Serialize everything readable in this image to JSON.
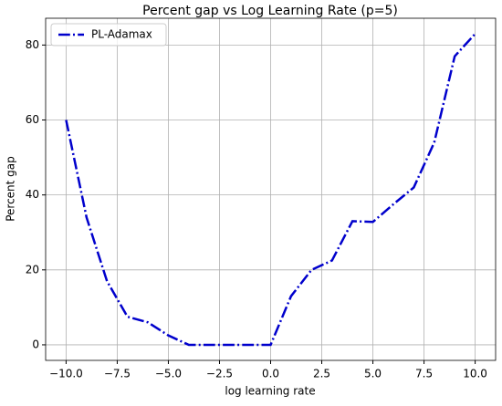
{
  "chart_data": {
    "type": "line",
    "title": "Percent gap vs Log Learning Rate (p=5)",
    "x_label": "log learning rate",
    "y_label": "Percent gap",
    "x": [
      -10,
      -9,
      -8,
      -7,
      -6,
      -5,
      -4,
      -3,
      -2,
      -1,
      0,
      1,
      2,
      3,
      4,
      5,
      6,
      7,
      8,
      9,
      10
    ],
    "series": [
      {
        "name": "PL-Adamax",
        "color": "#0000cc",
        "values": [
          60,
          34,
          17,
          7.5,
          6,
          2.5,
          0,
          0,
          0,
          0,
          0,
          13,
          20,
          22.5,
          33,
          32.8,
          37.5,
          42,
          54,
          77,
          83
        ]
      }
    ],
    "xlim": [
      -11,
      11
    ],
    "ylim": [
      -4.15,
      87.15
    ],
    "xticks": [
      {
        "value": -10,
        "label": "−10.0"
      },
      {
        "value": -7.5,
        "label": "−7.5"
      },
      {
        "value": -5,
        "label": "−5.0"
      },
      {
        "value": -2.5,
        "label": "−2.5"
      },
      {
        "value": 0,
        "label": "0.0"
      },
      {
        "value": 2.5,
        "label": "2.5"
      },
      {
        "value": 5,
        "label": "5.0"
      },
      {
        "value": 7.5,
        "label": "7.5"
      },
      {
        "value": 10,
        "label": "10.0"
      }
    ],
    "yticks": [
      0,
      20,
      40,
      60,
      80
    ],
    "grid": true,
    "legend": "upper left"
  }
}
